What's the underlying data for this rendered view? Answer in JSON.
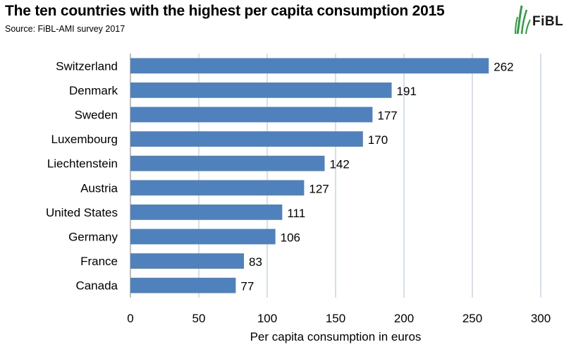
{
  "title": "The ten countries with the highest per capita consumption 2015",
  "source": "Source: FiBL-AMI survey 2017",
  "logo": {
    "text": "FiBL",
    "icon": "fibl-leaf-icon",
    "color": "#2e9e3f"
  },
  "colors": {
    "bar": "#4f81bd",
    "grid": "#aac1de",
    "axis": "#7f7f7f"
  },
  "chart_data": {
    "type": "bar",
    "orientation": "horizontal",
    "categories": [
      "Switzerland",
      "Denmark",
      "Sweden",
      "Luxembourg",
      "Liechtenstein",
      "Austria",
      "United States",
      "Germany",
      "France",
      "Canada"
    ],
    "values": [
      262,
      191,
      177,
      170,
      142,
      127,
      111,
      106,
      83,
      77
    ],
    "xlabel": "Per capita consumption in euros",
    "ylabel": "",
    "xlim": [
      0,
      300
    ],
    "xticks": [
      0,
      50,
      100,
      150,
      200,
      250,
      300
    ],
    "data_labels": true,
    "grid": "vertical"
  }
}
